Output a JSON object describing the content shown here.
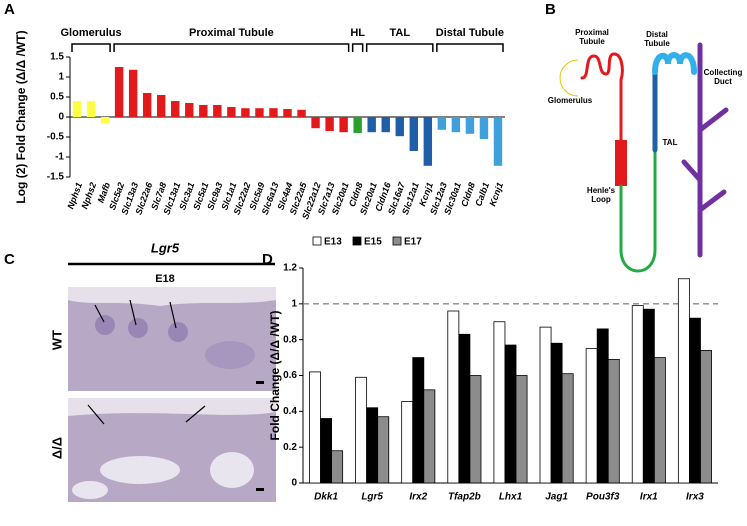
{
  "panels": [
    "A",
    "B",
    "C",
    "D"
  ],
  "chart_data": [
    {
      "type": "bar",
      "y_label": "Log (2) Fold Change (Δ/Δ /WT)",
      "ylim": [
        -1.5,
        1.5
      ],
      "yticks": [
        -1.5,
        -1,
        -0.5,
        0,
        0.5,
        1,
        1.5
      ],
      "groups": [
        {
          "name": "Glomerulus",
          "color": "#ffff44",
          "categories": [
            "Nphs1",
            "Nphs2",
            "Mafb"
          ],
          "values": [
            0.4,
            0.4,
            -0.15
          ]
        },
        {
          "name": "Proximal Tubule",
          "color": "#e31a1c",
          "categories": [
            "Slc5a2",
            "Slc13a3",
            "Slc22a6",
            "Slc7a8",
            "Slc13a1",
            "Slc3a1",
            "Slc5a1",
            "Slc9a3",
            "Slc1a1",
            "Slc22a2",
            "Slc5a9",
            "Slc6a13",
            "Slc4a4",
            "Slc22a5",
            "Slc22a12",
            "Slc7a13",
            "Slc20a1"
          ],
          "values": [
            1.25,
            1.18,
            0.6,
            0.55,
            0.4,
            0.35,
            0.3,
            0.3,
            0.25,
            0.22,
            0.22,
            0.22,
            0.2,
            0.18,
            -0.28,
            -0.35,
            -0.38
          ]
        },
        {
          "name": "HL",
          "color": "#2ca02c",
          "categories": [
            "Cldn8"
          ],
          "values": [
            -0.4
          ]
        },
        {
          "name": "TAL",
          "color": "#1f5fa8",
          "categories": [
            "Slc20a1",
            "Cldn16",
            "Slc16a7",
            "Slc12a1",
            "Kcnj1"
          ],
          "values": [
            -0.38,
            -0.38,
            -0.48,
            -0.85,
            -1.22
          ]
        },
        {
          "name": "Distal Tubule",
          "color": "#3fa0dc",
          "categories": [
            "Slc12a3",
            "Slc30a1",
            "Cldn8",
            "Calb1",
            "Kcnj1"
          ],
          "values": [
            -0.32,
            -0.38,
            -0.42,
            -0.55,
            -1.22
          ]
        }
      ]
    },
    {
      "type": "grouped_bar",
      "y_label": "Fold Change (Δ/Δ /WT)",
      "ylim": [
        0,
        1.2
      ],
      "yticks": [
        0,
        0.2,
        0.4,
        0.6,
        0.8,
        1,
        1.2
      ],
      "reference_line": 1,
      "categories": [
        "Dkk1",
        "Lgr5",
        "Irx2",
        "Tfap2b",
        "Lhx1",
        "Jag1",
        "Pou3f3",
        "Irx1",
        "Irx3"
      ],
      "series": [
        {
          "name": "E13",
          "color": "#ffffff",
          "values": [
            0.62,
            0.59,
            0.455,
            0.96,
            0.9,
            0.87,
            0.75,
            0.99,
            1.14
          ]
        },
        {
          "name": "E15",
          "color": "#000000",
          "values": [
            0.36,
            0.42,
            0.7,
            0.83,
            0.77,
            0.78,
            0.86,
            0.97,
            0.92
          ]
        },
        {
          "name": "E17",
          "color": "#8c8c8c",
          "values": [
            0.18,
            0.37,
            0.52,
            0.6,
            0.6,
            0.61,
            0.69,
            0.7,
            0.74
          ]
        }
      ]
    }
  ],
  "diagram": {
    "labels": [
      "Proximal Tubule",
      "Distal Tubule",
      "Glomerulus",
      "TAL",
      "Collecting Duct",
      "Henle's Loop"
    ]
  },
  "micrograph": {
    "gene": "Lgr5",
    "stage": "E18",
    "rows": [
      "WT",
      "Δ/Δ"
    ]
  }
}
